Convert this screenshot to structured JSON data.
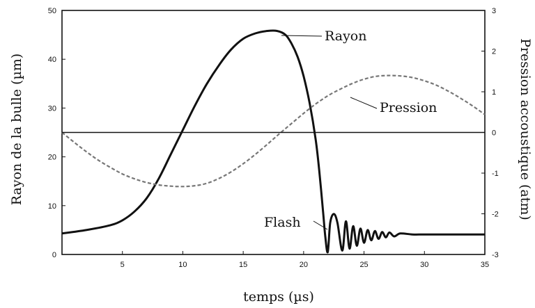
{
  "chart_data": {
    "type": "line",
    "xlabel": "temps (µs)",
    "ylabel_left": "Rayon de la bulle (µm)",
    "ylabel_right": "Pression accoustique (atm)",
    "xlim": [
      0,
      35
    ],
    "ylim_left": [
      0,
      50
    ],
    "ylim_right": [
      -3,
      3
    ],
    "x_ticks": [
      "5",
      "10",
      "15",
      "20",
      "25",
      "30",
      "35"
    ],
    "y_left_ticks": [
      "0",
      "10",
      "20",
      "30",
      "40",
      "50"
    ],
    "y_right_ticks": [
      "-3",
      "-2",
      "-1",
      "0",
      "1",
      "2",
      "3"
    ],
    "grid": false,
    "annotations": [
      "Rayon",
      "Pression",
      "Flash"
    ],
    "series": [
      {
        "name": "Rayon",
        "axis": "left",
        "style": "solid",
        "color": "#111111",
        "x": [
          0,
          2,
          4,
          5,
          6,
          7,
          8,
          9,
          10,
          11,
          12,
          13,
          14,
          15,
          16,
          17,
          17.8,
          18.5,
          19,
          19.5,
          20,
          20.5,
          21,
          21.3,
          21.6,
          21.8,
          22,
          22.2,
          22.5,
          22.8,
          23.2,
          23.5,
          23.8,
          24.1,
          24.4,
          24.7,
          25.0,
          25.3,
          25.6,
          25.9,
          26.2,
          26.5,
          26.8,
          27.1,
          27.5,
          28,
          29,
          30,
          32,
          35
        ],
        "y": [
          4.3,
          5.0,
          6.0,
          7.0,
          8.8,
          11.5,
          15.5,
          20.5,
          25.5,
          30.5,
          35.0,
          38.8,
          42.0,
          44.2,
          45.3,
          45.8,
          45.8,
          45.0,
          43.2,
          40.5,
          36.5,
          31.0,
          23.5,
          17.0,
          9.0,
          3.5,
          0.5,
          6.5,
          8.3,
          6.5,
          0.8,
          6.8,
          1.2,
          5.8,
          1.8,
          5.3,
          2.4,
          5.0,
          2.9,
          4.8,
          3.2,
          4.6,
          3.5,
          4.5,
          3.7,
          4.3,
          4.1,
          4.1,
          4.1,
          4.1
        ]
      },
      {
        "name": "Pression",
        "axis": "right",
        "style": "dashed",
        "color": "#777777",
        "x": [
          0,
          1,
          2,
          3,
          4,
          5,
          6,
          7,
          8,
          9,
          10,
          11,
          12,
          13,
          14,
          15,
          16,
          17,
          18,
          19,
          20,
          21,
          22,
          23,
          24,
          25,
          26,
          27,
          28,
          29,
          30,
          31,
          32,
          33,
          34,
          35
        ],
        "y": [
          0.0,
          -0.24,
          -0.47,
          -0.68,
          -0.86,
          -1.02,
          -1.14,
          -1.23,
          -1.29,
          -1.32,
          -1.33,
          -1.31,
          -1.25,
          -1.13,
          -0.97,
          -0.77,
          -0.54,
          -0.29,
          -0.03,
          0.22,
          0.47,
          0.7,
          0.9,
          1.06,
          1.2,
          1.31,
          1.38,
          1.4,
          1.39,
          1.35,
          1.27,
          1.16,
          1.01,
          0.84,
          0.65,
          0.44
        ]
      },
      {
        "name": "",
        "axis": "right",
        "style": "solid",
        "color": "#111111",
        "x": [
          0,
          35
        ],
        "y": [
          0,
          0
        ]
      }
    ]
  }
}
